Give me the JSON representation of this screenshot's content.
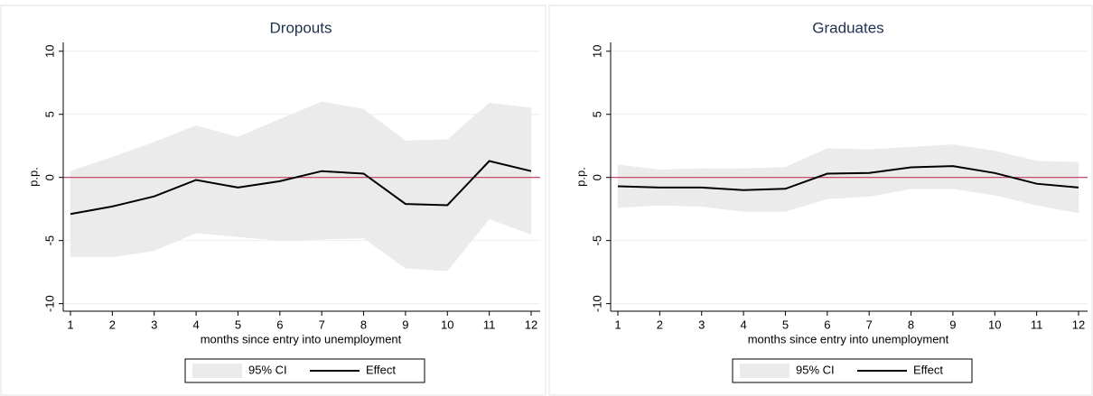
{
  "chart_data": [
    {
      "type": "line",
      "title": "Dropouts",
      "ylabel": "p.p.",
      "xlabel": "months since entry into unemployment",
      "x": [
        1,
        2,
        3,
        4,
        5,
        6,
        7,
        8,
        9,
        10,
        11,
        12
      ],
      "xlim": [
        1,
        12
      ],
      "xticks": [
        1,
        2,
        3,
        4,
        5,
        6,
        7,
        8,
        9,
        10,
        11,
        12
      ],
      "ylim": [
        -10.6,
        10.7
      ],
      "yticks": [
        -10,
        -5,
        0,
        5,
        10
      ],
      "grid": true,
      "reference_line": 0,
      "reference_color": "#c0395a",
      "series": [
        {
          "name": "95% CI",
          "color": "#ebebeb",
          "lower": [
            -6.3,
            -6.3,
            -5.8,
            -4.4,
            -4.7,
            -5.0,
            -4.9,
            -4.8,
            -7.2,
            -7.4,
            -3.3,
            -4.5
          ],
          "upper": [
            0.5,
            1.6,
            2.8,
            4.1,
            3.2,
            4.6,
            6.0,
            5.4,
            2.9,
            3.0,
            5.9,
            5.5
          ]
        },
        {
          "name": "Effect",
          "color": "#000000",
          "values": [
            -2.9,
            -2.3,
            -1.5,
            -0.2,
            -0.8,
            -0.3,
            0.5,
            0.3,
            -2.1,
            -2.2,
            1.3,
            0.5
          ]
        }
      ]
    },
    {
      "type": "line",
      "title": "Graduates",
      "ylabel": "p.p.",
      "xlabel": "months since entry into unemployment",
      "x": [
        1,
        2,
        3,
        4,
        5,
        6,
        7,
        8,
        9,
        10,
        11,
        12
      ],
      "xlim": [
        1,
        12
      ],
      "xticks": [
        1,
        2,
        3,
        4,
        5,
        6,
        7,
        8,
        9,
        10,
        11,
        12
      ],
      "ylim": [
        -10.6,
        10.7
      ],
      "yticks": [
        -10,
        -5,
        0,
        5,
        10
      ],
      "grid": true,
      "reference_line": 0,
      "reference_color": "#c0395a",
      "series": [
        {
          "name": "95% CI",
          "color": "#ebebeb",
          "lower": [
            -2.4,
            -2.2,
            -2.3,
            -2.7,
            -2.7,
            -1.7,
            -1.5,
            -0.9,
            -0.9,
            -1.4,
            -2.2,
            -2.8
          ],
          "upper": [
            1.0,
            0.6,
            0.7,
            0.7,
            0.8,
            2.3,
            2.2,
            2.4,
            2.6,
            2.1,
            1.3,
            1.2
          ]
        },
        {
          "name": "Effect",
          "color": "#000000",
          "values": [
            -0.7,
            -0.8,
            -0.8,
            -1.0,
            -0.9,
            0.3,
            0.35,
            0.8,
            0.9,
            0.35,
            -0.5,
            -0.8
          ]
        }
      ]
    }
  ]
}
